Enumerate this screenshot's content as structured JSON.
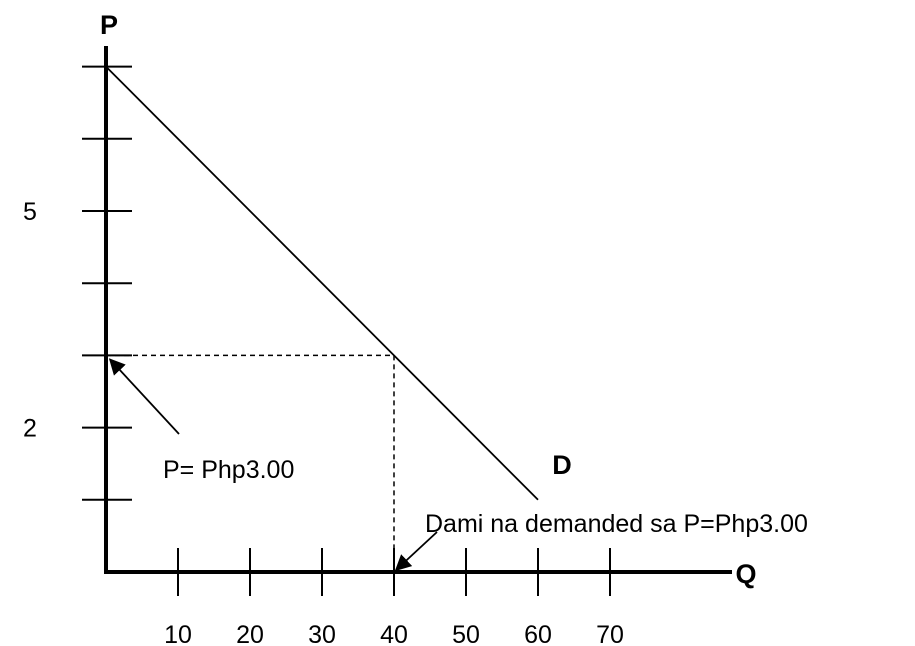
{
  "chart_data": {
    "type": "line",
    "x_axis": {
      "label": "Q",
      "ticks": [
        10,
        20,
        30,
        40,
        50,
        60,
        70
      ],
      "tick_labels": [
        "10",
        "20",
        "30",
        "40",
        "50",
        "60",
        "70"
      ],
      "range": [
        0,
        87
      ]
    },
    "y_axis": {
      "label": "P",
      "ticks": [
        1,
        2,
        3,
        4,
        5,
        6,
        7
      ],
      "tick_labels": [
        {
          "value": 2,
          "text": "2"
        },
        {
          "value": 5,
          "text": "5"
        }
      ],
      "range": [
        0,
        7.3
      ]
    },
    "series": [
      {
        "name": "D",
        "points": [
          [
            0,
            7
          ],
          [
            60,
            1
          ]
        ]
      }
    ],
    "reference_point": {
      "x": 40,
      "y": 3
    },
    "annotations": [
      {
        "id": "price",
        "text": "P= Php3.00",
        "arrow_to": {
          "x": 0,
          "y": 3
        }
      },
      {
        "id": "quantity",
        "text": "Dami na demanded sa P=Php3.00",
        "arrow_to": {
          "x": 40,
          "y": 0
        }
      }
    ],
    "grid": false,
    "legend": "none"
  }
}
